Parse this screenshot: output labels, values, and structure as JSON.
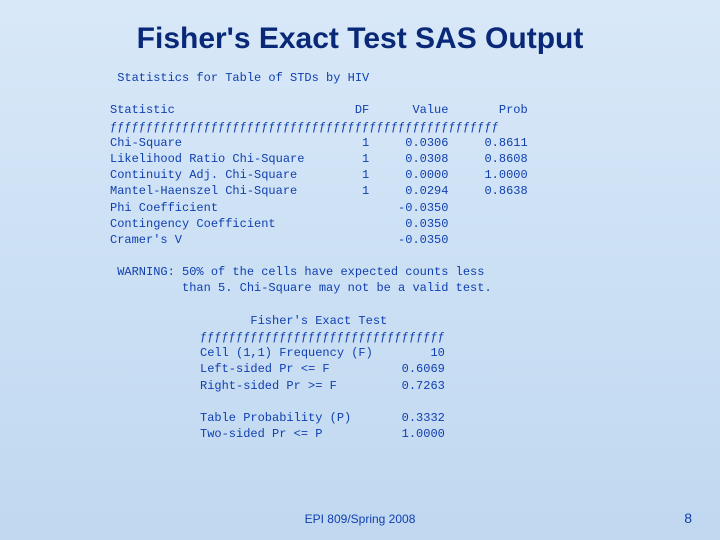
{
  "title": "Fisher's Exact Test SAS Output",
  "stats_header": " Statistics for Table of STDs by HIV",
  "col_stat": "Statistic",
  "col_df": "DF",
  "col_value": "Value",
  "col_prob": "Prob",
  "rows": [
    {
      "stat": "Chi-Square",
      "df": "1",
      "value": "0.0306",
      "prob": "0.8611"
    },
    {
      "stat": "Likelihood Ratio Chi-Square",
      "df": "1",
      "value": "0.0308",
      "prob": "0.8608"
    },
    {
      "stat": "Continuity Adj. Chi-Square",
      "df": "1",
      "value": "0.0000",
      "prob": "1.0000"
    },
    {
      "stat": "Mantel-Haenszel Chi-Square",
      "df": "1",
      "value": "0.0294",
      "prob": "0.8638"
    },
    {
      "stat": "Phi Coefficient",
      "df": "",
      "value": "-0.0350",
      "prob": ""
    },
    {
      "stat": "Contingency Coefficient",
      "df": "",
      "value": "0.0350",
      "prob": ""
    },
    {
      "stat": "Cramer's V",
      "df": "",
      "value": "-0.0350",
      "prob": ""
    }
  ],
  "warning": " WARNING: 50% of the cells have expected counts less\n          than 5. Chi-Square may not be a valid test.",
  "fisher_title": "Fisher's Exact Test",
  "fisher_rows": [
    {
      "label": "Cell (1,1) Frequency (F)",
      "val": "10"
    },
    {
      "label": "Left-sided Pr <= F",
      "val": "0.6069"
    },
    {
      "label": "Right-sided Pr >= F",
      "val": "0.7263"
    }
  ],
  "fisher_rows2": [
    {
      "label": "Table Probability (P)",
      "val": "0.3332"
    },
    {
      "label": "Two-sided Pr <= P",
      "val": "1.0000"
    }
  ],
  "footer": "EPI 809/Spring 2008",
  "page": "8",
  "colors": {
    "title": "#0a2878",
    "text": "#1040b0",
    "bg_top": "#d8e8f8",
    "bg_bottom": "#c0d8f0"
  }
}
